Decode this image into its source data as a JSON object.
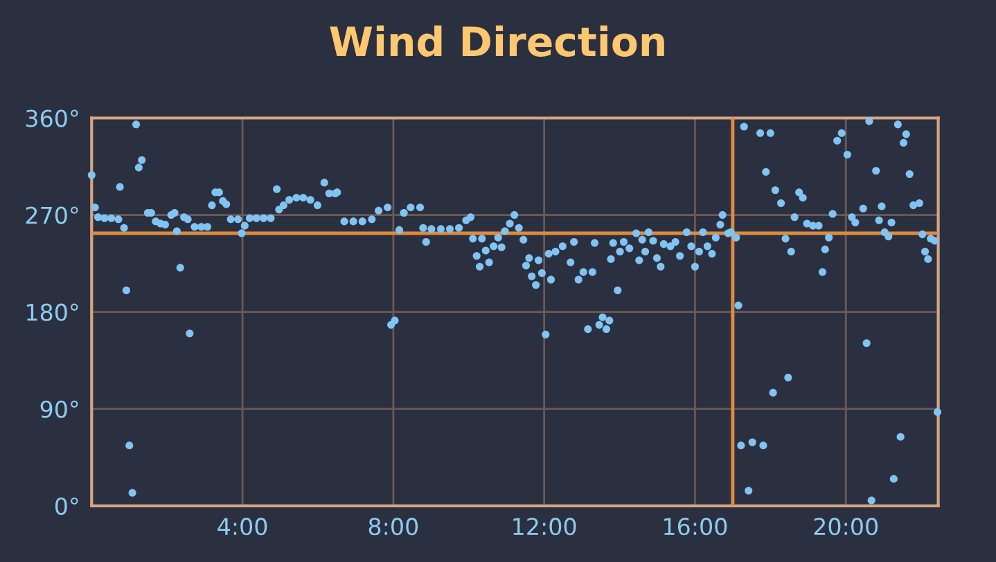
{
  "chart_data": {
    "type": "scatter",
    "title": "Wind Direction",
    "xlim": [
      0,
      22.45
    ],
    "ylim": [
      0,
      360
    ],
    "xticks": [
      {
        "value": 4,
        "label": "4:00"
      },
      {
        "value": 8,
        "label": "8:00"
      },
      {
        "value": 12,
        "label": "12:00"
      },
      {
        "value": 16,
        "label": "16:00"
      },
      {
        "value": 20,
        "label": "20:00"
      }
    ],
    "yticks": [
      {
        "value": 0,
        "label": "0°"
      },
      {
        "value": 90,
        "label": "90°"
      },
      {
        "value": 180,
        "label": "180°"
      },
      {
        "value": 270,
        "label": "270°"
      },
      {
        "value": 360,
        "label": "360°"
      }
    ],
    "grid": true,
    "legend": false,
    "marker": "circle",
    "ref_lines": [
      {
        "axis": "y",
        "value": 253,
        "color": "#e08a3c"
      },
      {
        "axis": "x",
        "value": 17.0,
        "color": "#e08a3c"
      }
    ],
    "series": [
      {
        "color": "#80c4f4",
        "x": [
          0.0,
          0.09,
          0.17,
          0.34,
          0.52,
          0.71,
          0.75,
          0.86,
          0.92,
          1.0,
          1.08,
          1.18,
          1.25,
          1.33,
          1.49,
          1.58,
          1.7,
          1.83,
          1.95,
          2.11,
          2.2,
          2.26,
          2.35,
          2.45,
          2.55,
          2.6,
          2.73,
          2.91,
          3.07,
          3.19,
          3.28,
          3.38,
          3.48,
          3.57,
          3.69,
          3.88,
          3.98,
          4.06,
          4.19,
          4.37,
          4.56,
          4.75,
          4.91,
          4.97,
          5.09,
          5.24,
          5.43,
          5.61,
          5.8,
          5.99,
          6.17,
          6.3,
          6.46,
          6.51,
          6.7,
          6.94,
          7.18,
          7.43,
          7.61,
          7.85,
          7.94,
          8.04,
          8.16,
          8.28,
          8.46,
          8.71,
          8.79,
          8.87,
          9.01,
          9.26,
          9.5,
          9.74,
          9.93,
          10.05,
          10.11,
          10.21,
          10.29,
          10.35,
          10.45,
          10.54,
          10.66,
          10.78,
          10.87,
          10.96,
          11.09,
          11.21,
          11.33,
          11.45,
          11.52,
          11.6,
          11.67,
          11.78,
          11.85,
          11.94,
          12.04,
          12.12,
          12.18,
          12.3,
          12.49,
          12.7,
          12.79,
          12.91,
          13.04,
          13.16,
          13.28,
          13.34,
          13.46,
          13.55,
          13.65,
          13.73,
          13.77,
          13.83,
          13.95,
          14.01,
          14.11,
          14.26,
          14.44,
          14.52,
          14.6,
          14.68,
          14.77,
          14.89,
          14.99,
          15.09,
          15.17,
          15.35,
          15.48,
          15.6,
          15.78,
          15.9,
          16.0,
          16.11,
          16.21,
          16.33,
          16.45,
          16.55,
          16.67,
          16.73,
          16.88,
          16.95,
          17.09,
          17.15,
          17.22,
          17.3,
          17.42,
          17.52,
          17.73,
          17.81,
          17.88,
          18.0,
          18.07,
          18.13,
          18.28,
          18.4,
          18.47,
          18.55,
          18.64,
          18.76,
          18.86,
          18.97,
          19.13,
          19.28,
          19.38,
          19.45,
          19.55,
          19.65,
          19.77,
          19.89,
          20.04,
          20.16,
          20.25,
          20.46,
          20.55,
          20.62,
          20.68,
          20.8,
          20.88,
          20.95,
          21.03,
          21.13,
          21.21,
          21.27,
          21.38,
          21.45,
          21.53,
          21.6,
          21.69,
          21.79,
          21.95,
          22.03,
          22.1,
          22.18,
          22.25,
          22.36,
          22.43
        ],
        "values": [
          307,
          277,
          268,
          267,
          267,
          266,
          296,
          258,
          200,
          56,
          12,
          354,
          314,
          321,
          272,
          272,
          264,
          262,
          261,
          270,
          272,
          255,
          221,
          268,
          266,
          160,
          259,
          259,
          259,
          279,
          291,
          291,
          283,
          280,
          266,
          266,
          253,
          260,
          267,
          267,
          267,
          267,
          294,
          275,
          279,
          284,
          286,
          286,
          284,
          279,
          300,
          290,
          290,
          291,
          264,
          264,
          264,
          266,
          274,
          277,
          168,
          172,
          256,
          272,
          277,
          277,
          258,
          245,
          257,
          257,
          257,
          258,
          265,
          268,
          248,
          232,
          222,
          248,
          237,
          226,
          241,
          249,
          240,
          255,
          262,
          270,
          258,
          247,
          223,
          230,
          213,
          205,
          228,
          216,
          159,
          234,
          210,
          236,
          241,
          226,
          245,
          210,
          217,
          164,
          217,
          244,
          168,
          175,
          164,
          172,
          229,
          244,
          200,
          236,
          245,
          239,
          253,
          228,
          247,
          236,
          254,
          246,
          230,
          222,
          243,
          241,
          245,
          232,
          254,
          241,
          222,
          236,
          254,
          241,
          234,
          249,
          261,
          270,
          253,
          254,
          249,
          186,
          56,
          352,
          14,
          59,
          346,
          56,
          310,
          346,
          105,
          293,
          281,
          248,
          119,
          236,
          268,
          291,
          286,
          262,
          260,
          260,
          217,
          238,
          249,
          271,
          339,
          346,
          326,
          268,
          263,
          276,
          151,
          357,
          5,
          311,
          265,
          278,
          254,
          250,
          263,
          25,
          354,
          64,
          337,
          345,
          308,
          279,
          281,
          252,
          236,
          229,
          248,
          246,
          87
        ]
      }
    ]
  }
}
